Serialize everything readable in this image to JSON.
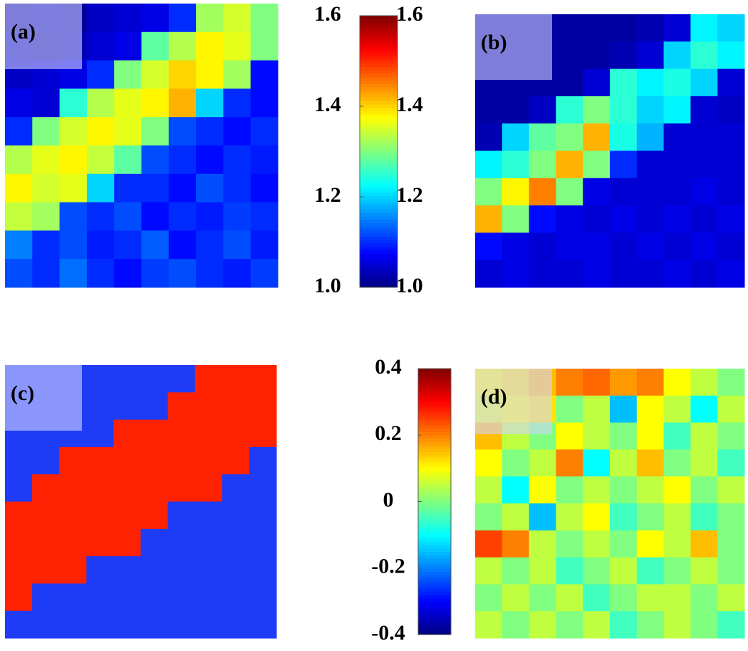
{
  "chart_data": [
    {
      "type": "heatmap",
      "label": "(a)",
      "zlim": [
        1.0,
        1.6
      ],
      "values": [
        [
          1.02,
          1.03,
          1.02,
          1.04,
          1.05,
          1.06,
          1.1,
          1.32,
          1.35,
          1.3
        ],
        [
          1.03,
          1.02,
          1.03,
          1.05,
          1.06,
          1.28,
          1.33,
          1.38,
          1.36,
          1.3
        ],
        [
          1.04,
          1.05,
          1.06,
          1.1,
          1.3,
          1.35,
          1.4,
          1.38,
          1.32,
          1.08
        ],
        [
          1.06,
          1.05,
          1.25,
          1.33,
          1.36,
          1.38,
          1.42,
          1.2,
          1.1,
          1.08
        ],
        [
          1.1,
          1.3,
          1.35,
          1.38,
          1.36,
          1.3,
          1.12,
          1.1,
          1.08,
          1.1
        ],
        [
          1.33,
          1.36,
          1.38,
          1.34,
          1.28,
          1.12,
          1.1,
          1.08,
          1.1,
          1.09
        ],
        [
          1.38,
          1.35,
          1.36,
          1.2,
          1.1,
          1.1,
          1.08,
          1.12,
          1.1,
          1.08
        ],
        [
          1.34,
          1.32,
          1.12,
          1.1,
          1.12,
          1.08,
          1.1,
          1.09,
          1.11,
          1.1
        ],
        [
          1.15,
          1.1,
          1.12,
          1.09,
          1.1,
          1.13,
          1.08,
          1.1,
          1.12,
          1.09
        ],
        [
          1.12,
          1.1,
          1.14,
          1.1,
          1.08,
          1.11,
          1.12,
          1.1,
          1.09,
          1.11
        ]
      ]
    },
    {
      "type": "colorbar",
      "ylim": [
        1.0,
        1.6
      ],
      "yticks": [
        {
          "value": 1,
          "label": "1.0"
        },
        1.2,
        1.4,
        1.6
      ]
    },
    {
      "type": "heatmap",
      "label": "(b)",
      "zlim": [
        1.0,
        1.6
      ],
      "values": [
        [
          1.02,
          1.02,
          1.02,
          1.02,
          1.02,
          1.02,
          1.03,
          1.05,
          1.22,
          1.2
        ],
        [
          1.02,
          1.02,
          1.02,
          1.02,
          1.02,
          1.03,
          1.05,
          1.2,
          1.25,
          1.22
        ],
        [
          1.02,
          1.02,
          1.02,
          1.02,
          1.05,
          1.25,
          1.22,
          1.24,
          1.2,
          1.05
        ],
        [
          1.02,
          1.02,
          1.04,
          1.25,
          1.3,
          1.25,
          1.2,
          1.22,
          1.05,
          1.04
        ],
        [
          1.03,
          1.2,
          1.28,
          1.3,
          1.42,
          1.24,
          1.18,
          1.05,
          1.05,
          1.05
        ],
        [
          1.22,
          1.25,
          1.3,
          1.42,
          1.3,
          1.1,
          1.05,
          1.05,
          1.05,
          1.05
        ],
        [
          1.3,
          1.38,
          1.45,
          1.3,
          1.06,
          1.05,
          1.05,
          1.05,
          1.06,
          1.05
        ],
        [
          1.42,
          1.3,
          1.08,
          1.06,
          1.05,
          1.06,
          1.05,
          1.06,
          1.05,
          1.06
        ],
        [
          1.08,
          1.06,
          1.05,
          1.06,
          1.06,
          1.05,
          1.06,
          1.05,
          1.06,
          1.05
        ],
        [
          1.05,
          1.06,
          1.05,
          1.05,
          1.06,
          1.05,
          1.05,
          1.06,
          1.05,
          1.06
        ]
      ]
    },
    {
      "type": "heatmap",
      "label": "(c)",
      "colors": [
        "#1e3cf5",
        "#ff2200"
      ],
      "values": [
        [
          0,
          0,
          0,
          0,
          0,
          0,
          0,
          1,
          1,
          1
        ],
        [
          0,
          0,
          0,
          0,
          0,
          0,
          1,
          1,
          1,
          1
        ],
        [
          0,
          0,
          0,
          0,
          1,
          1,
          1,
          1,
          1,
          1
        ],
        [
          0,
          0,
          1,
          1,
          1,
          1,
          1,
          1,
          1,
          0
        ],
        [
          0,
          1,
          1,
          1,
          1,
          1,
          1,
          1,
          0,
          0
        ],
        [
          1,
          1,
          1,
          1,
          1,
          1,
          0,
          0,
          0,
          0
        ],
        [
          1,
          1,
          1,
          1,
          1,
          0,
          0,
          0,
          0,
          0
        ],
        [
          1,
          1,
          1,
          0,
          0,
          0,
          0,
          0,
          0,
          0
        ],
        [
          1,
          0,
          0,
          0,
          0,
          0,
          0,
          0,
          0,
          0
        ],
        [
          0,
          0,
          0,
          0,
          0,
          0,
          0,
          0,
          0,
          0
        ]
      ]
    },
    {
      "type": "colorbar",
      "ylim": [
        -0.4,
        0.4
      ],
      "yticks": [
        -0.4,
        -0.2,
        0,
        0.2,
        0.4
      ]
    },
    {
      "type": "heatmap",
      "label": "(d)",
      "zlim": [
        -0.4,
        0.4
      ],
      "values": [
        [
          0.1,
          0.12,
          0.15,
          0.2,
          0.22,
          0.18,
          0.2,
          0.1,
          0.05,
          0.0
        ],
        [
          0.08,
          0.1,
          0.12,
          0.0,
          0.05,
          -0.15,
          0.1,
          0.05,
          -0.1,
          0.05
        ],
        [
          0.15,
          0.05,
          0.0,
          0.1,
          0.05,
          0.0,
          0.1,
          -0.05,
          0.05,
          0.0
        ],
        [
          0.1,
          0.0,
          0.05,
          0.2,
          -0.1,
          0.05,
          0.15,
          0.0,
          0.05,
          -0.05
        ],
        [
          0.05,
          -0.1,
          0.1,
          0.0,
          0.05,
          0.0,
          0.05,
          0.1,
          0.0,
          0.05
        ],
        [
          0.0,
          0.05,
          -0.15,
          0.05,
          0.1,
          -0.05,
          0.0,
          0.05,
          -0.05,
          0.0
        ],
        [
          0.25,
          0.2,
          0.05,
          0.0,
          0.05,
          0.0,
          0.1,
          0.05,
          0.15,
          0.0
        ],
        [
          0.05,
          0.0,
          0.05,
          -0.05,
          0.0,
          0.05,
          -0.05,
          0.0,
          0.05,
          0.0
        ],
        [
          0.0,
          0.05,
          0.0,
          0.05,
          -0.05,
          0.0,
          0.05,
          0.05,
          0.0,
          0.05
        ],
        [
          0.05,
          0.0,
          0.05,
          0.0,
          0.05,
          -0.05,
          0.0,
          0.05,
          0.0,
          -0.05
        ]
      ]
    }
  ]
}
